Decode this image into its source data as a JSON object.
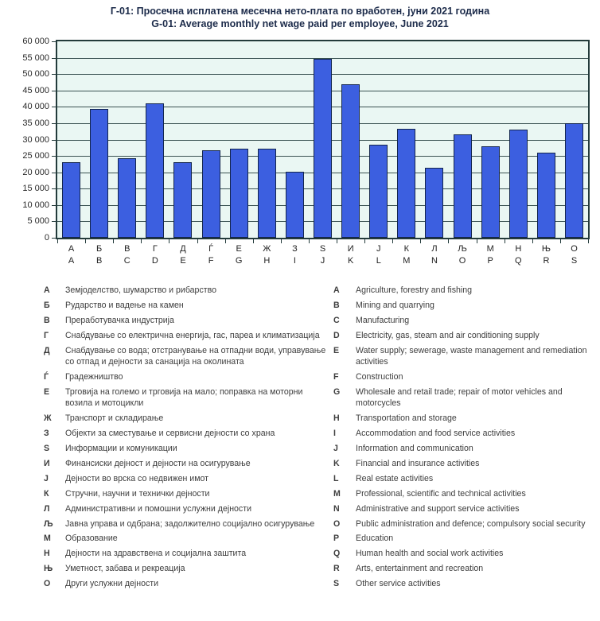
{
  "title": {
    "line1_mk": "Г-01: Просечна исплатена месечна нето-плата по вработен, јуни 2021 година",
    "line2_en": "G-01: Average monthly net wage paid per employee, June 2021"
  },
  "chart_data": {
    "type": "bar",
    "title": "Г-01: Просечна исплатена месечна нето-плата по вработен, јуни 2021 година / G-01: Average monthly net wage paid per employee, June 2021",
    "categories_mk": [
      "А",
      "Б",
      "В",
      "Г",
      "Д",
      "Ѓ",
      "Е",
      "Ж",
      "З",
      "S",
      "И",
      "Ј",
      "К",
      "Л",
      "Љ",
      "М",
      "Н",
      "Њ",
      "О"
    ],
    "categories_en": [
      "A",
      "B",
      "C",
      "D",
      "E",
      "F",
      "G",
      "H",
      "I",
      "J",
      "K",
      "L",
      "M",
      "N",
      "O",
      "P",
      "Q",
      "R",
      "S"
    ],
    "values": [
      23100,
      39400,
      24200,
      41000,
      23000,
      26800,
      27300,
      27100,
      20200,
      54700,
      47000,
      28400,
      33400,
      21300,
      31700,
      27900,
      33000,
      25900,
      34900
    ],
    "xlabel": "",
    "ylabel": "",
    "ylim": [
      0,
      60000
    ],
    "ytick_step": 5000,
    "ytick_labels": [
      "0",
      "5 000",
      "10 000",
      "15 000",
      "20 000",
      "25 000",
      "30 000",
      "35 000",
      "40 000",
      "45 000",
      "50 000",
      "55 000",
      "60 000"
    ],
    "grid": true,
    "legend_position": "none",
    "bar_color": "#3c5fe0",
    "bar_border_color": "#13254d",
    "plot_bg_color": "#eaf7f3",
    "gridline_color": "#3a5252",
    "axis_color": "#233b3b"
  },
  "legend": {
    "rows": [
      {
        "mk_letter": "А",
        "mk_text": "Земјоделство, шумарство и рибарство",
        "en_letter": "A",
        "en_text": "Agriculture, forestry and fishing"
      },
      {
        "mk_letter": "Б",
        "mk_text": "Рударство и вадење на камен",
        "en_letter": "B",
        "en_text": "Mining and quarrying"
      },
      {
        "mk_letter": "В",
        "mk_text": "Преработувачка индустрија",
        "en_letter": "C",
        "en_text": "Manufacturing"
      },
      {
        "mk_letter": "Г",
        "mk_text": "Снабдување со електрична енергија, гас, пареа и климатизација",
        "en_letter": "D",
        "en_text": "Electricity, gas, steam and air conditioning supply"
      },
      {
        "mk_letter": "Д",
        "mk_text": "Снабдување со вода; отстранување на отпадни води, управување со отпад и дејности за санација на околината",
        "en_letter": "E",
        "en_text": "Water supply; sewerage, waste management and remediation activities"
      },
      {
        "mk_letter": "Ѓ",
        "mk_text": "Градежништво",
        "en_letter": "F",
        "en_text": "Construction"
      },
      {
        "mk_letter": "Е",
        "mk_text": "Трговија на големо и трговија на мало; поправка на моторни возила и мотоцикли",
        "en_letter": "G",
        "en_text": "Wholesale and retail trade; repair of motor vehicles and motorcycles"
      },
      {
        "mk_letter": "Ж",
        "mk_text": "Транспорт и складирање",
        "en_letter": "H",
        "en_text": "Transportation and storage"
      },
      {
        "mk_letter": "З",
        "mk_text": "Објекти за сместување и сервисни дејности со храна",
        "en_letter": "I",
        "en_text": "Accommodation and food service activities"
      },
      {
        "mk_letter": "S",
        "mk_text": "Информации и комуникации",
        "en_letter": "J",
        "en_text": "Information and communication"
      },
      {
        "mk_letter": "И",
        "mk_text": "Финансиски дејност и дејности на осигурување",
        "en_letter": "K",
        "en_text": "Financial and insurance activities"
      },
      {
        "mk_letter": "Ј",
        "mk_text": "Дејности во врска со недвижен имот",
        "en_letter": "L",
        "en_text": "Real estate activities"
      },
      {
        "mk_letter": "К",
        "mk_text": "Стручни, научни и технички дејности",
        "en_letter": "M",
        "en_text": "Professional, scientific and technical activities"
      },
      {
        "mk_letter": "Л",
        "mk_text": "Административни и помошни услужни дејности",
        "en_letter": "N",
        "en_text": "Administrative and support service activities"
      },
      {
        "mk_letter": "Љ",
        "mk_text": "Јавна управа и одбрана; задолжително социјално осигурување",
        "en_letter": "O",
        "en_text": "Public administration and defence; compulsory social security"
      },
      {
        "mk_letter": "М",
        "mk_text": "Образование",
        "en_letter": "P",
        "en_text": "Education"
      },
      {
        "mk_letter": "Н",
        "mk_text": "Дејности на здравствена и социјална заштита",
        "en_letter": "Q",
        "en_text": "Human health and social work activities"
      },
      {
        "mk_letter": "Њ",
        "mk_text": "Уметност, забава и рекреација",
        "en_letter": "R",
        "en_text": "Arts, entertainment and recreation"
      },
      {
        "mk_letter": "О",
        "mk_text": "Други услужни дејности",
        "en_letter": "S",
        "en_text": "Other service activities"
      }
    ]
  }
}
